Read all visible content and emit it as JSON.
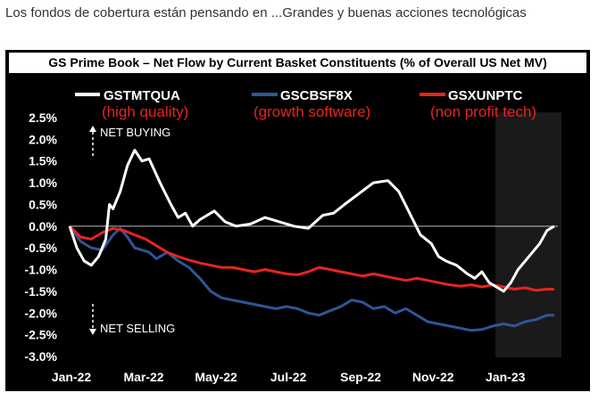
{
  "page": {
    "headline": "Los fondos de cobertura están pensando en ...Grandes y buenas acciones tecnológicas"
  },
  "chart_data": {
    "type": "line",
    "title": "GS Prime Book – Net Flow by Current Basket Constituents (% of Overall US Net MV)",
    "xlabel": "",
    "ylabel": "",
    "x_ticks": [
      "Jan-22",
      "Mar-22",
      "May-22",
      "Jul-22",
      "Sep-22",
      "Nov-22",
      "Jan-23"
    ],
    "y_ticks": [
      "2.5%",
      "2.0%",
      "1.5%",
      "1.0%",
      "0.5%",
      "0.0%",
      "-0.5%",
      "-1.0%",
      "-1.5%",
      "-2.0%",
      "-2.5%",
      "-3.0%"
    ],
    "ylim": [
      -3.0,
      2.5
    ],
    "xlim": [
      0,
      13.5
    ],
    "grid": false,
    "zero_line": true,
    "legend_position": "top",
    "annotations": {
      "buying": "NET BUYING",
      "selling": "NET SELLING"
    },
    "series": [
      {
        "name": "GSTMTQUA",
        "subtitle": "(high quality)",
        "color": "#ffffff",
        "points": [
          [
            0.0,
            0.0
          ],
          [
            0.2,
            -0.5
          ],
          [
            0.4,
            -0.8
          ],
          [
            0.6,
            -0.9
          ],
          [
            0.8,
            -0.7
          ],
          [
            1.0,
            -0.3
          ],
          [
            1.1,
            0.5
          ],
          [
            1.2,
            0.4
          ],
          [
            1.4,
            0.8
          ],
          [
            1.6,
            1.4
          ],
          [
            1.8,
            1.75
          ],
          [
            2.0,
            1.5
          ],
          [
            2.2,
            1.55
          ],
          [
            2.5,
            1.0
          ],
          [
            2.8,
            0.5
          ],
          [
            3.0,
            0.2
          ],
          [
            3.2,
            0.3
          ],
          [
            3.4,
            0.0
          ],
          [
            3.6,
            0.15
          ],
          [
            4.0,
            0.35
          ],
          [
            4.3,
            0.1
          ],
          [
            4.6,
            0.0
          ],
          [
            5.0,
            0.05
          ],
          [
            5.4,
            0.2
          ],
          [
            5.8,
            0.1
          ],
          [
            6.2,
            0.0
          ],
          [
            6.6,
            -0.05
          ],
          [
            7.0,
            0.25
          ],
          [
            7.3,
            0.3
          ],
          [
            7.6,
            0.5
          ],
          [
            8.0,
            0.75
          ],
          [
            8.4,
            1.0
          ],
          [
            8.8,
            1.05
          ],
          [
            9.1,
            0.8
          ],
          [
            9.4,
            0.3
          ],
          [
            9.7,
            -0.2
          ],
          [
            10.0,
            -0.4
          ],
          [
            10.2,
            -0.7
          ],
          [
            10.4,
            -0.8
          ],
          [
            10.7,
            -0.9
          ],
          [
            11.0,
            -1.1
          ],
          [
            11.2,
            -1.2
          ],
          [
            11.4,
            -1.05
          ],
          [
            11.6,
            -1.3
          ],
          [
            11.8,
            -1.4
          ],
          [
            12.0,
            -1.5
          ],
          [
            12.2,
            -1.3
          ],
          [
            12.4,
            -1.0
          ],
          [
            12.6,
            -0.8
          ],
          [
            12.8,
            -0.6
          ],
          [
            13.0,
            -0.4
          ],
          [
            13.2,
            -0.1
          ],
          [
            13.4,
            0.0
          ]
        ]
      },
      {
        "name": "GSCBSF8X",
        "subtitle": "(growth software)",
        "color": "#2f5597",
        "points": [
          [
            0.0,
            0.0
          ],
          [
            0.3,
            -0.35
          ],
          [
            0.6,
            -0.5
          ],
          [
            0.9,
            -0.55
          ],
          [
            1.2,
            -0.2
          ],
          [
            1.4,
            -0.05
          ],
          [
            1.6,
            -0.25
          ],
          [
            1.8,
            -0.5
          ],
          [
            2.0,
            -0.55
          ],
          [
            2.2,
            -0.6
          ],
          [
            2.4,
            -0.75
          ],
          [
            2.7,
            -0.6
          ],
          [
            3.0,
            -0.8
          ],
          [
            3.3,
            -0.95
          ],
          [
            3.6,
            -1.2
          ],
          [
            3.9,
            -1.5
          ],
          [
            4.2,
            -1.65
          ],
          [
            4.5,
            -1.7
          ],
          [
            4.8,
            -1.75
          ],
          [
            5.1,
            -1.8
          ],
          [
            5.4,
            -1.85
          ],
          [
            5.7,
            -1.9
          ],
          [
            6.0,
            -1.85
          ],
          [
            6.3,
            -1.9
          ],
          [
            6.6,
            -2.0
          ],
          [
            6.9,
            -2.05
          ],
          [
            7.2,
            -1.95
          ],
          [
            7.5,
            -1.85
          ],
          [
            7.8,
            -1.7
          ],
          [
            8.1,
            -1.75
          ],
          [
            8.4,
            -1.9
          ],
          [
            8.7,
            -1.85
          ],
          [
            9.0,
            -2.0
          ],
          [
            9.3,
            -1.9
          ],
          [
            9.6,
            -2.05
          ],
          [
            9.9,
            -2.2
          ],
          [
            10.2,
            -2.25
          ],
          [
            10.5,
            -2.3
          ],
          [
            10.8,
            -2.35
          ],
          [
            11.1,
            -2.4
          ],
          [
            11.4,
            -2.38
          ],
          [
            11.7,
            -2.3
          ],
          [
            12.0,
            -2.25
          ],
          [
            12.3,
            -2.3
          ],
          [
            12.6,
            -2.2
          ],
          [
            12.9,
            -2.15
          ],
          [
            13.2,
            -2.05
          ],
          [
            13.4,
            -2.05
          ]
        ]
      },
      {
        "name": "GSXUNPTC",
        "subtitle": "(non profit tech)",
        "color": "#e8231f",
        "points": [
          [
            0.0,
            0.0
          ],
          [
            0.3,
            -0.25
          ],
          [
            0.6,
            -0.3
          ],
          [
            0.9,
            -0.15
          ],
          [
            1.2,
            -0.05
          ],
          [
            1.5,
            -0.1
          ],
          [
            1.8,
            -0.2
          ],
          [
            2.1,
            -0.3
          ],
          [
            2.4,
            -0.45
          ],
          [
            2.7,
            -0.6
          ],
          [
            3.0,
            -0.7
          ],
          [
            3.3,
            -0.78
          ],
          [
            3.6,
            -0.85
          ],
          [
            3.9,
            -0.9
          ],
          [
            4.2,
            -0.95
          ],
          [
            4.5,
            -0.95
          ],
          [
            4.8,
            -1.0
          ],
          [
            5.1,
            -1.05
          ],
          [
            5.4,
            -1.0
          ],
          [
            5.7,
            -1.05
          ],
          [
            6.0,
            -1.1
          ],
          [
            6.3,
            -1.12
          ],
          [
            6.6,
            -1.05
          ],
          [
            6.9,
            -0.95
          ],
          [
            7.2,
            -1.0
          ],
          [
            7.5,
            -1.05
          ],
          [
            7.8,
            -1.1
          ],
          [
            8.1,
            -1.15
          ],
          [
            8.4,
            -1.1
          ],
          [
            8.7,
            -1.15
          ],
          [
            9.0,
            -1.2
          ],
          [
            9.3,
            -1.25
          ],
          [
            9.6,
            -1.2
          ],
          [
            9.9,
            -1.25
          ],
          [
            10.2,
            -1.3
          ],
          [
            10.5,
            -1.35
          ],
          [
            10.8,
            -1.38
          ],
          [
            11.1,
            -1.35
          ],
          [
            11.4,
            -1.4
          ],
          [
            11.7,
            -1.35
          ],
          [
            12.0,
            -1.4
          ],
          [
            12.3,
            -1.45
          ],
          [
            12.6,
            -1.42
          ],
          [
            12.9,
            -1.48
          ],
          [
            13.2,
            -1.45
          ],
          [
            13.4,
            -1.45
          ]
        ]
      }
    ]
  }
}
